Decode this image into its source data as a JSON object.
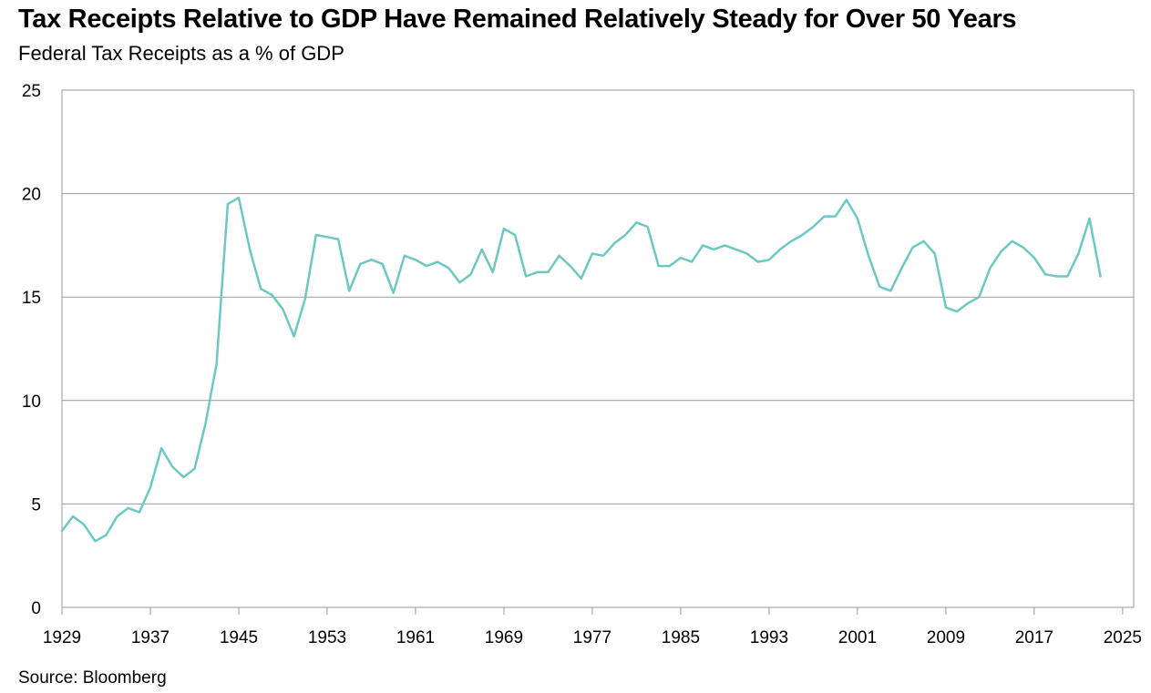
{
  "chart_data": {
    "type": "line",
    "title": "Tax Receipts Relative to GDP Have Remained Relatively Steady for Over 50 Years",
    "subtitle": "Federal Tax Receipts as a % of GDP",
    "source": "Source: Bloomberg",
    "xlabel": "",
    "ylabel": "",
    "xlim": [
      1929,
      2026
    ],
    "ylim": [
      0,
      25
    ],
    "y_ticks": [
      0,
      5,
      10,
      15,
      20,
      25
    ],
    "x_ticks": [
      1929,
      1937,
      1945,
      1953,
      1961,
      1969,
      1977,
      1985,
      1993,
      2001,
      2009,
      2017,
      2025
    ],
    "grid": "horizontal",
    "line_color": "#6cc8c4",
    "series": [
      {
        "x": [
          1929,
          1930,
          1931,
          1932,
          1933,
          1934,
          1935,
          1936,
          1937,
          1938,
          1939,
          1940,
          1941,
          1942,
          1943,
          1944,
          1945,
          1946,
          1947,
          1948,
          1949,
          1950,
          1951,
          1952,
          1953,
          1954,
          1955,
          1956,
          1957,
          1958,
          1959,
          1960,
          1961,
          1962,
          1963,
          1964,
          1965,
          1966,
          1967,
          1968,
          1969,
          1970,
          1971,
          1972,
          1973,
          1974,
          1975,
          1976,
          1977,
          1978,
          1979,
          1980,
          1981,
          1982,
          1983,
          1984,
          1985,
          1986,
          1987,
          1988,
          1989,
          1990,
          1991,
          1992,
          1993,
          1994,
          1995,
          1996,
          1997,
          1998,
          1999,
          2000,
          2001,
          2002,
          2003,
          2004,
          2005,
          2006,
          2007,
          2008,
          2009,
          2010,
          2011,
          2012,
          2013,
          2014,
          2015,
          2016,
          2017,
          2018,
          2019,
          2020,
          2021,
          2022,
          2023
        ],
        "values": [
          3.7,
          4.4,
          4.0,
          3.2,
          3.5,
          4.4,
          4.8,
          4.6,
          5.8,
          7.7,
          6.8,
          6.3,
          6.7,
          8.9,
          11.8,
          19.5,
          19.8,
          17.3,
          15.4,
          15.1,
          14.4,
          13.1,
          14.9,
          18.0,
          17.9,
          17.8,
          15.3,
          16.6,
          16.8,
          16.6,
          15.2,
          17.0,
          16.8,
          16.5,
          16.7,
          16.4,
          15.7,
          16.1,
          17.3,
          16.2,
          18.3,
          18.0,
          16.0,
          16.2,
          16.2,
          17.0,
          16.5,
          15.9,
          17.1,
          17.0,
          17.6,
          18.0,
          18.6,
          18.4,
          16.5,
          16.5,
          16.9,
          16.7,
          17.5,
          17.3,
          17.5,
          17.3,
          17.1,
          16.7,
          16.8,
          17.3,
          17.7,
          18.0,
          18.4,
          18.9,
          18.9,
          19.7,
          18.8,
          17.0,
          15.5,
          15.3,
          16.4,
          17.4,
          17.7,
          17.1,
          14.5,
          14.3,
          14.7,
          15.0,
          16.4,
          17.2,
          17.7,
          17.4,
          16.9,
          16.1,
          16.0,
          16.0,
          17.1,
          18.8,
          16.0
        ]
      }
    ]
  }
}
